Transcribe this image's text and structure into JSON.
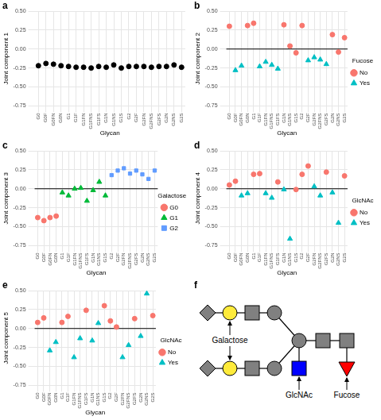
{
  "chart_data": [
    {
      "panel": "a",
      "type": "scatter",
      "x_label": "Glycan",
      "y_label": "Joint component 1",
      "categories": [
        "G0",
        "G0F",
        "G0FN",
        "G0N",
        "G1",
        "G1F",
        "G1FN",
        "G1FNS",
        "G1FS",
        "G1N",
        "G1NS",
        "G1S",
        "G2",
        "G2F",
        "G2FN",
        "G2FNS",
        "G2FS",
        "G2N",
        "G2NS",
        "G2S"
      ],
      "values": [
        -0.22,
        -0.19,
        -0.2,
        -0.22,
        -0.23,
        -0.24,
        -0.24,
        -0.25,
        -0.23,
        -0.24,
        -0.21,
        -0.25,
        -0.23,
        -0.23,
        -0.23,
        -0.24,
        -0.23,
        -0.23,
        -0.21,
        -0.24
      ],
      "color": "#000000",
      "marker": "circle",
      "ylim": [
        -0.75,
        0.5
      ],
      "yticks": [
        {
          "value": -0.75,
          "label": "-0.75"
        },
        {
          "value": -0.5,
          "label": "-0.50"
        },
        {
          "value": -0.25,
          "label": "-0.25"
        },
        {
          "value": 0,
          "label": "0.00"
        },
        {
          "value": 0.25,
          "label": "0.25"
        },
        {
          "value": 0.5,
          "label": "0.50"
        }
      ],
      "grid": true
    },
    {
      "panel": "b",
      "type": "scatter",
      "x_label": "Glycan",
      "y_label": "Joint component 2",
      "categories": [
        "G0",
        "G0F",
        "G0FN",
        "G0N",
        "G1",
        "G1F",
        "G1FN",
        "G1FNS",
        "G1FS",
        "G1N",
        "G1NS",
        "G1S",
        "G2",
        "G2F",
        "G2FN",
        "G2FNS",
        "G2FS",
        "G2N",
        "G2NS",
        "G2S"
      ],
      "legend": "right",
      "legend_title": "Fucose",
      "series": [
        {
          "name": "No",
          "color": "#F8766D",
          "marker": "circle",
          "values": [
            0.3,
            null,
            null,
            0.31,
            0.34,
            null,
            null,
            null,
            null,
            0.32,
            0.04,
            -0.05,
            0.31,
            null,
            null,
            null,
            null,
            0.19,
            -0.04,
            0.15
          ]
        },
        {
          "name": "Yes",
          "color": "#00BFC4",
          "marker": "triangle",
          "values": [
            null,
            -0.28,
            -0.22,
            null,
            null,
            -0.23,
            -0.17,
            -0.21,
            -0.26,
            null,
            null,
            null,
            null,
            -0.15,
            -0.11,
            -0.14,
            -0.2,
            null,
            null,
            null
          ]
        }
      ],
      "hline": 0,
      "ylim": [
        -0.75,
        0.5
      ],
      "yticks": [
        {
          "value": -0.75,
          "label": "-0.75"
        },
        {
          "value": -0.5,
          "label": "-0.50"
        },
        {
          "value": -0.25,
          "label": "-0.25"
        },
        {
          "value": 0,
          "label": "0.00"
        },
        {
          "value": 0.25,
          "label": "0.25"
        },
        {
          "value": 0.5,
          "label": "0.50"
        }
      ],
      "grid": true
    },
    {
      "panel": "c",
      "type": "scatter",
      "x_label": "Glycan",
      "y_label": "Joint component 3",
      "categories": [
        "G0",
        "G0F",
        "G0FN",
        "G0N",
        "G1",
        "G1F",
        "G1FN",
        "G1FNS",
        "G1FS",
        "G1N",
        "G1NS",
        "G1S",
        "G2",
        "G2F",
        "G2FN",
        "G2FNS",
        "G2FS",
        "G2N",
        "G2NS",
        "G2S"
      ],
      "legend": "right",
      "legend_title": "Galactose",
      "series": [
        {
          "name": "G0",
          "color": "#F8766D",
          "marker": "circle",
          "values": [
            -0.38,
            -0.42,
            -0.38,
            -0.36,
            null,
            null,
            null,
            null,
            null,
            null,
            null,
            null,
            null,
            null,
            null,
            null,
            null,
            null,
            null,
            null
          ]
        },
        {
          "name": "G1",
          "color": "#00BA38",
          "marker": "triangle",
          "values": [
            null,
            null,
            null,
            null,
            -0.05,
            -0.09,
            0.0,
            0.01,
            -0.16,
            -0.02,
            0.09,
            -0.09,
            null,
            null,
            null,
            null,
            null,
            null,
            null,
            null
          ]
        },
        {
          "name": "G2",
          "color": "#619CFF",
          "marker": "square",
          "values": [
            null,
            null,
            null,
            null,
            null,
            null,
            null,
            null,
            null,
            null,
            null,
            null,
            0.18,
            0.24,
            0.27,
            0.2,
            0.24,
            0.19,
            0.13,
            0.24
          ]
        }
      ],
      "hline": 0,
      "ylim": [
        -0.75,
        0.5
      ],
      "yticks": [
        {
          "value": -0.75,
          "label": "-0.75"
        },
        {
          "value": -0.5,
          "label": "-0.50"
        },
        {
          "value": -0.25,
          "label": "-0.25"
        },
        {
          "value": 0,
          "label": "0.00"
        },
        {
          "value": 0.25,
          "label": "0.25"
        },
        {
          "value": 0.5,
          "label": "0.50"
        }
      ],
      "grid": true
    },
    {
      "panel": "d",
      "type": "scatter",
      "x_label": "Glycan",
      "y_label": "Joint component 4",
      "categories": [
        "G0",
        "G0F",
        "G0FN",
        "G0N",
        "G1",
        "G1F",
        "G1FN",
        "G1FNS",
        "G1FS",
        "G1N",
        "G1NS",
        "G1S",
        "G2",
        "G2F",
        "G2FN",
        "G2FNS",
        "G2FS",
        "G2N",
        "G2NS",
        "G2S"
      ],
      "legend": "right",
      "legend_title": "GlcNAc",
      "series": [
        {
          "name": "No",
          "color": "#F8766D",
          "marker": "circle",
          "values": [
            0.05,
            0.1,
            null,
            null,
            0.19,
            0.2,
            null,
            null,
            0.09,
            null,
            null,
            -0.01,
            0.19,
            0.3,
            null,
            null,
            0.22,
            null,
            null,
            0.17
          ]
        },
        {
          "name": "Yes",
          "color": "#00BFC4",
          "marker": "triangle",
          "values": [
            null,
            null,
            -0.09,
            -0.06,
            null,
            null,
            -0.06,
            -0.12,
            null,
            -0.01,
            -0.66,
            null,
            null,
            null,
            0.03,
            -0.09,
            null,
            -0.05,
            -0.45,
            null
          ]
        }
      ],
      "hline": 0,
      "ylim": [
        -0.75,
        0.5
      ],
      "yticks": [
        {
          "value": -0.75,
          "label": "-0.75"
        },
        {
          "value": -0.5,
          "label": "-0.50"
        },
        {
          "value": -0.25,
          "label": "-0.25"
        },
        {
          "value": 0,
          "label": "0.00"
        },
        {
          "value": 0.25,
          "label": "0.25"
        },
        {
          "value": 0.5,
          "label": "0.50"
        }
      ],
      "grid": true
    },
    {
      "panel": "e",
      "type": "scatter",
      "x_label": "Glycan",
      "y_label": "Joint component 5",
      "categories": [
        "G0",
        "G0F",
        "G0FN",
        "G0N",
        "G1",
        "G1F",
        "G1FN",
        "G1FNS",
        "G1FS",
        "G1N",
        "G1NS",
        "G1S",
        "G2",
        "G2F",
        "G2FN",
        "G2FNS",
        "G2FS",
        "G2N",
        "G2NS",
        "G2S"
      ],
      "legend": "right",
      "legend_title": "GlcNAc",
      "series": [
        {
          "name": "No",
          "color": "#F8766D",
          "marker": "circle",
          "values": [
            0.08,
            0.14,
            null,
            null,
            0.08,
            0.16,
            null,
            null,
            0.24,
            null,
            null,
            0.3,
            0.1,
            0.02,
            null,
            null,
            0.13,
            null,
            null,
            0.17
          ]
        },
        {
          "name": "Yes",
          "color": "#00BFC4",
          "marker": "triangle",
          "values": [
            null,
            null,
            -0.29,
            -0.18,
            null,
            null,
            -0.38,
            -0.13,
            null,
            -0.16,
            0.07,
            null,
            null,
            null,
            -0.38,
            -0.22,
            null,
            -0.1,
            0.46,
            null
          ]
        }
      ],
      "hline": 0,
      "ylim": [
        -0.75,
        0.5
      ],
      "yticks": [
        {
          "value": -0.75,
          "label": "-0.75"
        },
        {
          "value": -0.5,
          "label": "-0.50"
        },
        {
          "value": -0.25,
          "label": "-0.25"
        },
        {
          "value": 0,
          "label": "0.00"
        },
        {
          "value": 0.25,
          "label": "0.25"
        },
        {
          "value": 0.5,
          "label": "0.50"
        }
      ],
      "grid": true
    }
  ],
  "diagram": {
    "panel": "f",
    "labels": {
      "galactose": "Galactose",
      "glcnac": "GlcNAc",
      "fucose": "Fucose"
    }
  }
}
